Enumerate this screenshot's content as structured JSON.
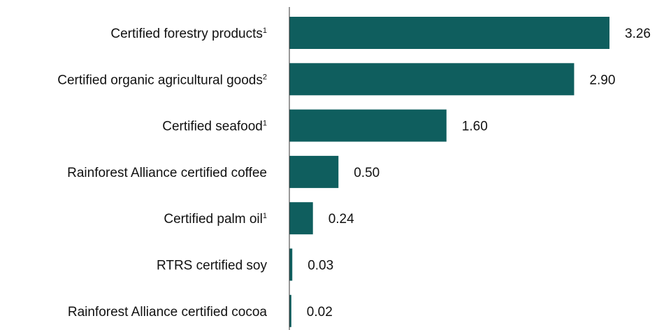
{
  "chart_data": {
    "type": "bar",
    "orientation": "horizontal",
    "categories": [
      {
        "label": "Certified forestry products",
        "sup": "1"
      },
      {
        "label": "Certified organic agricultural goods",
        "sup": "2"
      },
      {
        "label": "Certified seafood",
        "sup": "1"
      },
      {
        "label": "Rainforest Alliance certified coffee",
        "sup": ""
      },
      {
        "label": "Certified palm oil",
        "sup": "1"
      },
      {
        "label": "RTRS certified soy",
        "sup": ""
      },
      {
        "label": "Rainforest Alliance certified cocoa",
        "sup": ""
      }
    ],
    "values": [
      3.26,
      2.9,
      1.6,
      0.5,
      0.24,
      0.03,
      0.02
    ],
    "value_labels": [
      "3.26",
      "2.90",
      "1.60",
      "0.50",
      "0.24",
      "0.03",
      "0.02"
    ],
    "title": "",
    "xlabel": "",
    "ylabel": "",
    "xlim": [
      0,
      3.26
    ],
    "grid": false,
    "legend": "none",
    "bar_color": "#0f5e5e",
    "axis_color": "#333333",
    "text_color": "#111111"
  }
}
